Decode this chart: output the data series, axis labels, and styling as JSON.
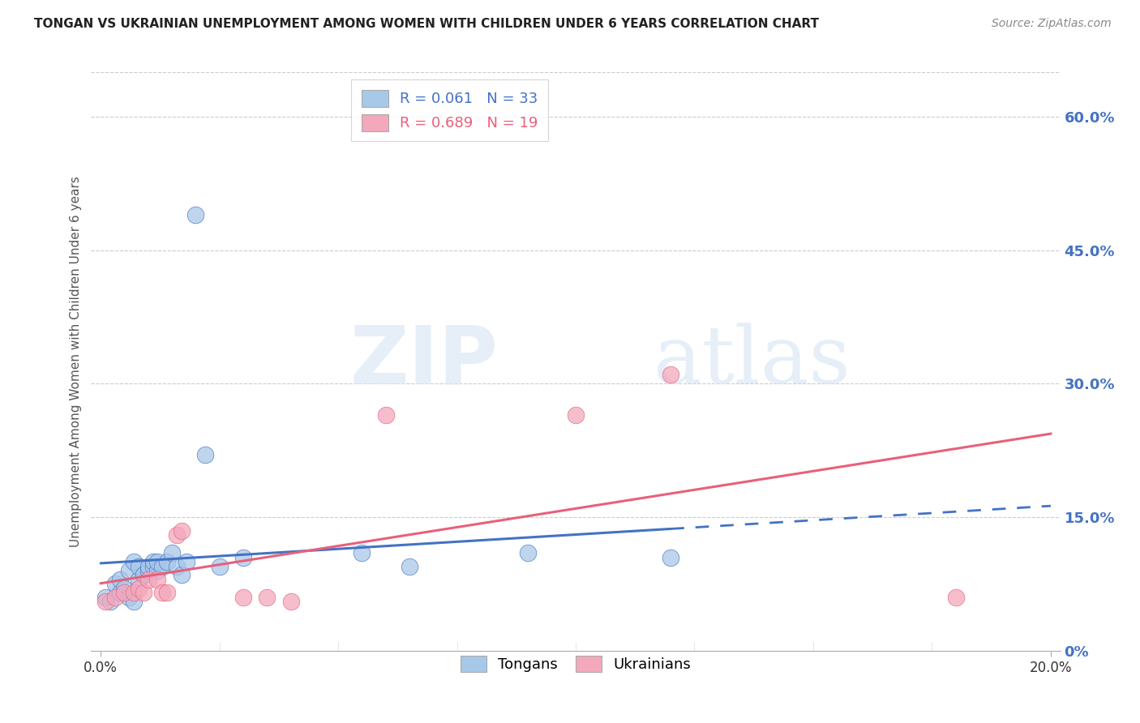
{
  "title": "TONGAN VS UKRAINIAN UNEMPLOYMENT AMONG WOMEN WITH CHILDREN UNDER 6 YEARS CORRELATION CHART",
  "source": "Source: ZipAtlas.com",
  "ylabel": "Unemployment Among Women with Children Under 6 years",
  "ylim": [
    0.0,
    0.65
  ],
  "xlim": [
    -0.002,
    0.202
  ],
  "tongan_R": 0.061,
  "tongan_N": 33,
  "ukrainian_R": 0.689,
  "ukrainian_N": 19,
  "tongan_color": "#a8c8e8",
  "ukrainian_color": "#f4a8bc",
  "tongan_line_color": "#4472c4",
  "ukrainian_line_color": "#e8607a",
  "background_color": "#ffffff",
  "tongan_x": [
    0.001,
    0.002,
    0.003,
    0.004,
    0.004,
    0.005,
    0.006,
    0.006,
    0.007,
    0.007,
    0.008,
    0.008,
    0.009,
    0.01,
    0.01,
    0.011,
    0.011,
    0.012,
    0.012,
    0.013,
    0.014,
    0.015,
    0.016,
    0.017,
    0.018,
    0.02,
    0.022,
    0.025,
    0.03,
    0.055,
    0.065,
    0.09,
    0.12
  ],
  "tongan_y": [
    0.06,
    0.055,
    0.075,
    0.065,
    0.08,
    0.07,
    0.09,
    0.06,
    0.1,
    0.055,
    0.08,
    0.095,
    0.085,
    0.09,
    0.095,
    0.095,
    0.1,
    0.09,
    0.1,
    0.095,
    0.1,
    0.11,
    0.095,
    0.085,
    0.1,
    0.49,
    0.22,
    0.095,
    0.105,
    0.11,
    0.095,
    0.11,
    0.105
  ],
  "ukrainian_x": [
    0.001,
    0.003,
    0.005,
    0.007,
    0.008,
    0.009,
    0.01,
    0.012,
    0.013,
    0.014,
    0.016,
    0.017,
    0.03,
    0.035,
    0.04,
    0.06,
    0.1,
    0.12,
    0.18
  ],
  "ukrainian_y": [
    0.055,
    0.06,
    0.065,
    0.065,
    0.07,
    0.065,
    0.08,
    0.08,
    0.065,
    0.065,
    0.13,
    0.135,
    0.06,
    0.06,
    0.055,
    0.265,
    0.265,
    0.31,
    0.06
  ],
  "trend_tongan_x0": 0.0,
  "trend_tongan_x1": 0.2,
  "trend_tongan_solid_end": 0.12,
  "trend_ukrainian_x0": 0.0,
  "trend_ukrainian_x1": 0.2,
  "ytick_vals": [
    0.0,
    0.15,
    0.3,
    0.45,
    0.6
  ],
  "ytick_labels": [
    "0%",
    "15.0%",
    "30.0%",
    "45.0%",
    "60.0%"
  ],
  "xtick_vals": [
    0.0,
    0.2
  ],
  "xtick_labels": [
    "0.0%",
    "20.0%"
  ],
  "grid_color": "#cccccc",
  "grid_style": "--",
  "title_fontsize": 11,
  "source_fontsize": 10,
  "axis_label_color": "#666666",
  "tick_label_color": "#4472c4"
}
